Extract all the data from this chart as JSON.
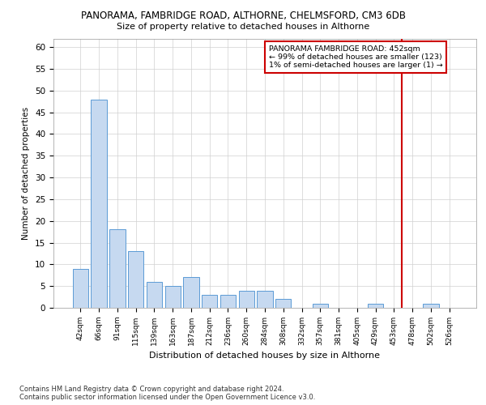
{
  "title_line1": "PANORAMA, FAMBRIDGE ROAD, ALTHORNE, CHELMSFORD, CM3 6DB",
  "title_line2": "Size of property relative to detached houses in Althorne",
  "xlabel": "Distribution of detached houses by size in Althorne",
  "ylabel": "Number of detached properties",
  "categories": [
    "42sqm",
    "66sqm",
    "91sqm",
    "115sqm",
    "139sqm",
    "163sqm",
    "187sqm",
    "212sqm",
    "236sqm",
    "260sqm",
    "284sqm",
    "308sqm",
    "332sqm",
    "357sqm",
    "381sqm",
    "405sqm",
    "429sqm",
    "453sqm",
    "478sqm",
    "502sqm",
    "526sqm"
  ],
  "values": [
    9,
    48,
    18,
    13,
    6,
    5,
    7,
    3,
    3,
    4,
    4,
    2,
    0,
    1,
    0,
    0,
    1,
    0,
    0,
    1,
    0
  ],
  "bar_color": "#c6d9f0",
  "bar_edge_color": "#5b9bd5",
  "highlight_line_index": 17,
  "highlight_color": "#cc0000",
  "annotation_text": "PANORAMA FAMBRIDGE ROAD: 452sqm\n← 99% of detached houses are smaller (123)\n1% of semi-detached houses are larger (1) →",
  "annotation_box_color": "#ffffff",
  "annotation_box_edge": "#cc0000",
  "ylim": [
    0,
    62
  ],
  "yticks": [
    0,
    5,
    10,
    15,
    20,
    25,
    30,
    35,
    40,
    45,
    50,
    55,
    60
  ],
  "footer": "Contains HM Land Registry data © Crown copyright and database right 2024.\nContains public sector information licensed under the Open Government Licence v3.0.",
  "background_color": "#ffffff",
  "grid_color": "#d0d0d0"
}
